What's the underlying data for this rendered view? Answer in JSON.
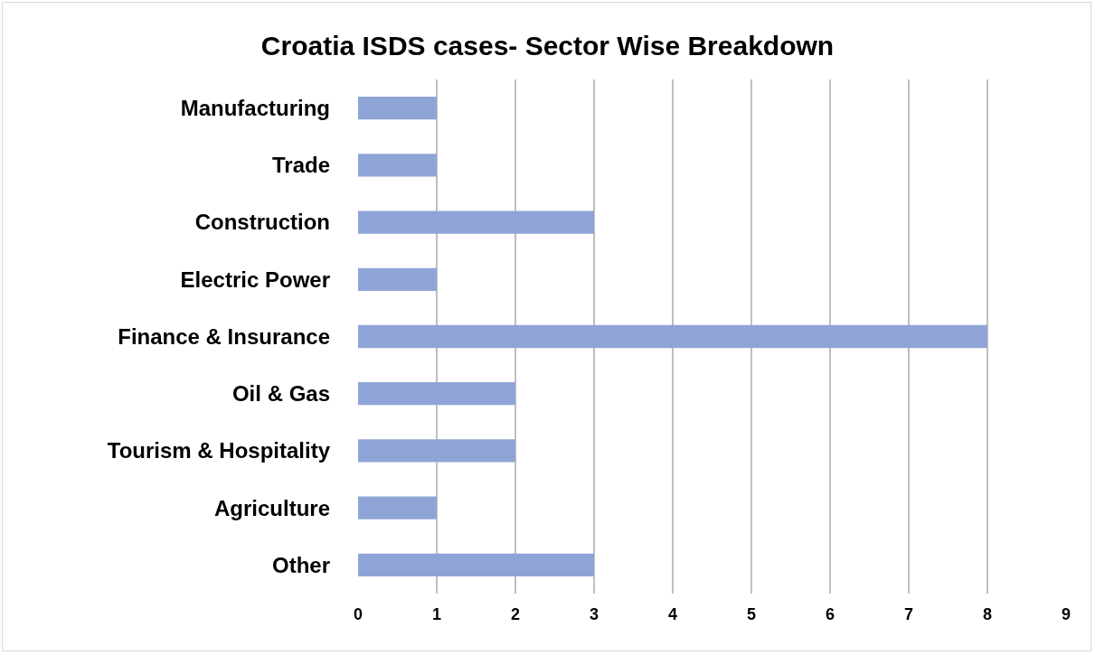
{
  "chart_data": {
    "type": "bar",
    "orientation": "horizontal",
    "title": "Croatia ISDS cases- Sector Wise Breakdown",
    "categories": [
      "Manufacturing",
      "Trade",
      "Construction",
      "Electric Power",
      "Finance & Insurance",
      "Oil & Gas",
      "Tourism & Hospitality",
      "Agriculture",
      "Other"
    ],
    "values": [
      1,
      1,
      3,
      1,
      8,
      2,
      2,
      1,
      3
    ],
    "color": "#8fa4d6",
    "xlim": [
      0,
      9
    ],
    "xticks": [
      0,
      1,
      2,
      3,
      4,
      5,
      6,
      7,
      8,
      9
    ],
    "grid": "x",
    "legend": false
  }
}
